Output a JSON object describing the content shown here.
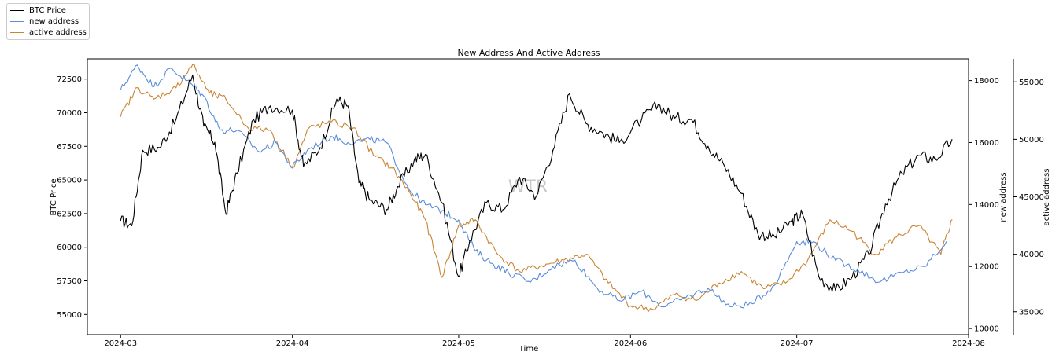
{
  "chart_data": {
    "type": "line",
    "title": "New Address And Active Address",
    "xlabel": "Time",
    "watermark": "WTR",
    "x_ticks": [
      "2024-03",
      "2024-04",
      "2024-05",
      "2024-06",
      "2024-07",
      "2024-08"
    ],
    "x_range": [
      "2024-02-24",
      "2024-08-01"
    ],
    "axes": {
      "left": {
        "label": "BTC Price",
        "ylim": [
          53500,
          74000
        ],
        "ticks": [
          55000,
          57500,
          60000,
          62500,
          65000,
          67500,
          70000,
          72500
        ]
      },
      "right1": {
        "label": "new address",
        "ylim": [
          9800,
          18700
        ],
        "ticks": [
          10000,
          12000,
          14000,
          16000,
          18000
        ]
      },
      "right2": {
        "label": "active address",
        "ylim": [
          33000,
          57000
        ],
        "ticks": [
          35000,
          40000,
          45000,
          50000,
          55000
        ]
      }
    },
    "legend": {
      "position": "top-left outside"
    },
    "series": [
      {
        "name": "BTC Price",
        "axis": "left",
        "color": "#000000",
        "x": [
          "2024-03-01",
          "2024-03-03",
          "2024-03-05",
          "2024-03-08",
          "2024-03-11",
          "2024-03-14",
          "2024-03-16",
          "2024-03-18",
          "2024-03-20",
          "2024-03-22",
          "2024-03-25",
          "2024-03-28",
          "2024-04-01",
          "2024-04-03",
          "2024-04-06",
          "2024-04-09",
          "2024-04-11",
          "2024-04-13",
          "2024-04-15",
          "2024-04-18",
          "2024-04-20",
          "2024-04-23",
          "2024-04-25",
          "2024-04-28",
          "2024-05-01",
          "2024-05-03",
          "2024-05-06",
          "2024-05-09",
          "2024-05-12",
          "2024-05-15",
          "2024-05-18",
          "2024-05-21",
          "2024-05-24",
          "2024-05-27",
          "2024-05-30",
          "2024-06-03",
          "2024-06-06",
          "2024-06-09",
          "2024-06-12",
          "2024-06-15",
          "2024-06-18",
          "2024-06-21",
          "2024-06-24",
          "2024-06-27",
          "2024-06-30",
          "2024-07-02",
          "2024-07-05",
          "2024-07-08",
          "2024-07-11",
          "2024-07-14",
          "2024-07-17",
          "2024-07-20",
          "2024-07-23",
          "2024-07-26",
          "2024-07-29"
        ],
        "y": [
          62000,
          61600,
          67200,
          67400,
          69500,
          72800,
          69000,
          67800,
          62500,
          65500,
          69500,
          70500,
          70200,
          66000,
          67400,
          71000,
          70500,
          64800,
          63500,
          62800,
          64500,
          66500,
          66900,
          63300,
          57800,
          60500,
          63300,
          62800,
          65200,
          63800,
          67200,
          71400,
          69200,
          68500,
          67800,
          69500,
          70600,
          69600,
          69500,
          67500,
          66000,
          64000,
          61000,
          60800,
          61900,
          62500,
          57800,
          56800,
          57800,
          59500,
          63200,
          65500,
          66800,
          66500,
          68000
        ]
      },
      {
        "name": "new address",
        "axis": "right1",
        "color": "#5b8dd9",
        "x": [
          "2024-03-01",
          "2024-03-04",
          "2024-03-07",
          "2024-03-10",
          "2024-03-13",
          "2024-03-16",
          "2024-03-19",
          "2024-03-22",
          "2024-03-26",
          "2024-03-29",
          "2024-04-01",
          "2024-04-04",
          "2024-04-08",
          "2024-04-11",
          "2024-04-15",
          "2024-04-18",
          "2024-04-22",
          "2024-04-25",
          "2024-04-28",
          "2024-05-01",
          "2024-05-04",
          "2024-05-07",
          "2024-05-10",
          "2024-05-14",
          "2024-05-18",
          "2024-05-22",
          "2024-05-26",
          "2024-05-30",
          "2024-06-03",
          "2024-06-07",
          "2024-06-11",
          "2024-06-15",
          "2024-06-19",
          "2024-06-23",
          "2024-06-27",
          "2024-07-01",
          "2024-07-04",
          "2024-07-08",
          "2024-07-12",
          "2024-07-16",
          "2024-07-20",
          "2024-07-24",
          "2024-07-28"
        ],
        "y": [
          17700,
          18500,
          17800,
          18400,
          18000,
          17500,
          16400,
          16400,
          15700,
          16000,
          15200,
          15800,
          16200,
          16000,
          16100,
          16000,
          14500,
          14000,
          13800,
          13500,
          12500,
          12100,
          11800,
          11500,
          12000,
          12200,
          11300,
          10900,
          11200,
          10700,
          11000,
          11300,
          10700,
          10800,
          11400,
          12800,
          12800,
          12200,
          11900,
          11500,
          11800,
          12000,
          12800
        ]
      },
      {
        "name": "active address",
        "axis": "right2",
        "color": "#c98534",
        "x": [
          "2024-03-01",
          "2024-03-04",
          "2024-03-07",
          "2024-03-11",
          "2024-03-14",
          "2024-03-17",
          "2024-03-20",
          "2024-03-24",
          "2024-03-28",
          "2024-04-01",
          "2024-04-04",
          "2024-04-08",
          "2024-04-12",
          "2024-04-16",
          "2024-04-19",
          "2024-04-22",
          "2024-04-25",
          "2024-04-28",
          "2024-05-01",
          "2024-05-04",
          "2024-05-08",
          "2024-05-12",
          "2024-05-16",
          "2024-05-20",
          "2024-05-24",
          "2024-05-28",
          "2024-06-01",
          "2024-06-05",
          "2024-06-09",
          "2024-06-13",
          "2024-06-17",
          "2024-06-21",
          "2024-06-25",
          "2024-06-29",
          "2024-07-03",
          "2024-07-07",
          "2024-07-11",
          "2024-07-15",
          "2024-07-19",
          "2024-07-23",
          "2024-07-27",
          "2024-07-29"
        ],
        "y": [
          52000,
          54500,
          53500,
          54500,
          56500,
          54000,
          53500,
          51000,
          50800,
          47500,
          51000,
          51500,
          51000,
          48500,
          47500,
          45500,
          43000,
          38000,
          42500,
          43000,
          40000,
          38500,
          39000,
          39500,
          40000,
          37500,
          35500,
          35200,
          36500,
          36000,
          37500,
          38500,
          37000,
          37500,
          39500,
          43000,
          42000,
          40000,
          41500,
          42500,
          40000,
          43000
        ]
      }
    ]
  }
}
